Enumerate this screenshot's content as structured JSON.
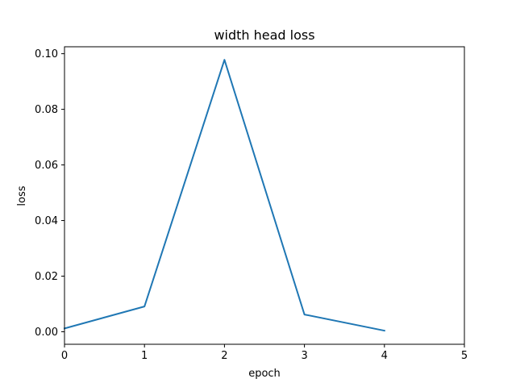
{
  "chart_data": {
    "type": "line",
    "title": "width head loss",
    "xlabel": "epoch",
    "ylabel": "loss",
    "xlim": [
      0,
      5
    ],
    "ylim": [
      -0.0045,
      0.1025
    ],
    "xticks": [
      "0",
      "1",
      "2",
      "3",
      "4",
      "5"
    ],
    "yticks": [
      "0.00",
      "0.02",
      "0.04",
      "0.06",
      "0.08",
      "0.10"
    ],
    "grid": false,
    "series": [
      {
        "x": [
          0,
          1,
          2,
          3,
          4
        ],
        "y": [
          0.0012,
          0.0091,
          0.0978,
          0.0062,
          0.0004
        ]
      }
    ],
    "colors": {
      "line": "#1f77b4",
      "axis": "#000000"
    }
  }
}
